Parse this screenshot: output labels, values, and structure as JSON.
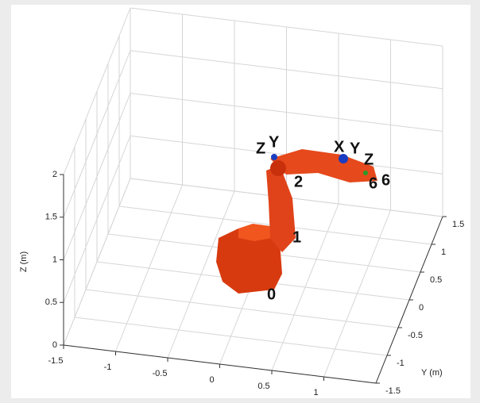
{
  "axes": {
    "x": {
      "ticks": [
        -1.5,
        -1,
        -0.5,
        0,
        0.5,
        1
      ]
    },
    "y": {
      "label": "Y (m)",
      "ticks": [
        -1.5,
        -1,
        -0.5,
        0,
        0.5,
        1,
        1.5
      ]
    },
    "z": {
      "label": "Z (m)",
      "ticks": [
        0,
        0.5,
        1,
        1.5,
        2
      ]
    }
  },
  "robot": {
    "joint_labels": [
      "0",
      "1",
      "2",
      "6",
      "6"
    ],
    "frame_labels": [
      "Z",
      "Y",
      "X",
      "Y",
      "Z"
    ]
  }
}
